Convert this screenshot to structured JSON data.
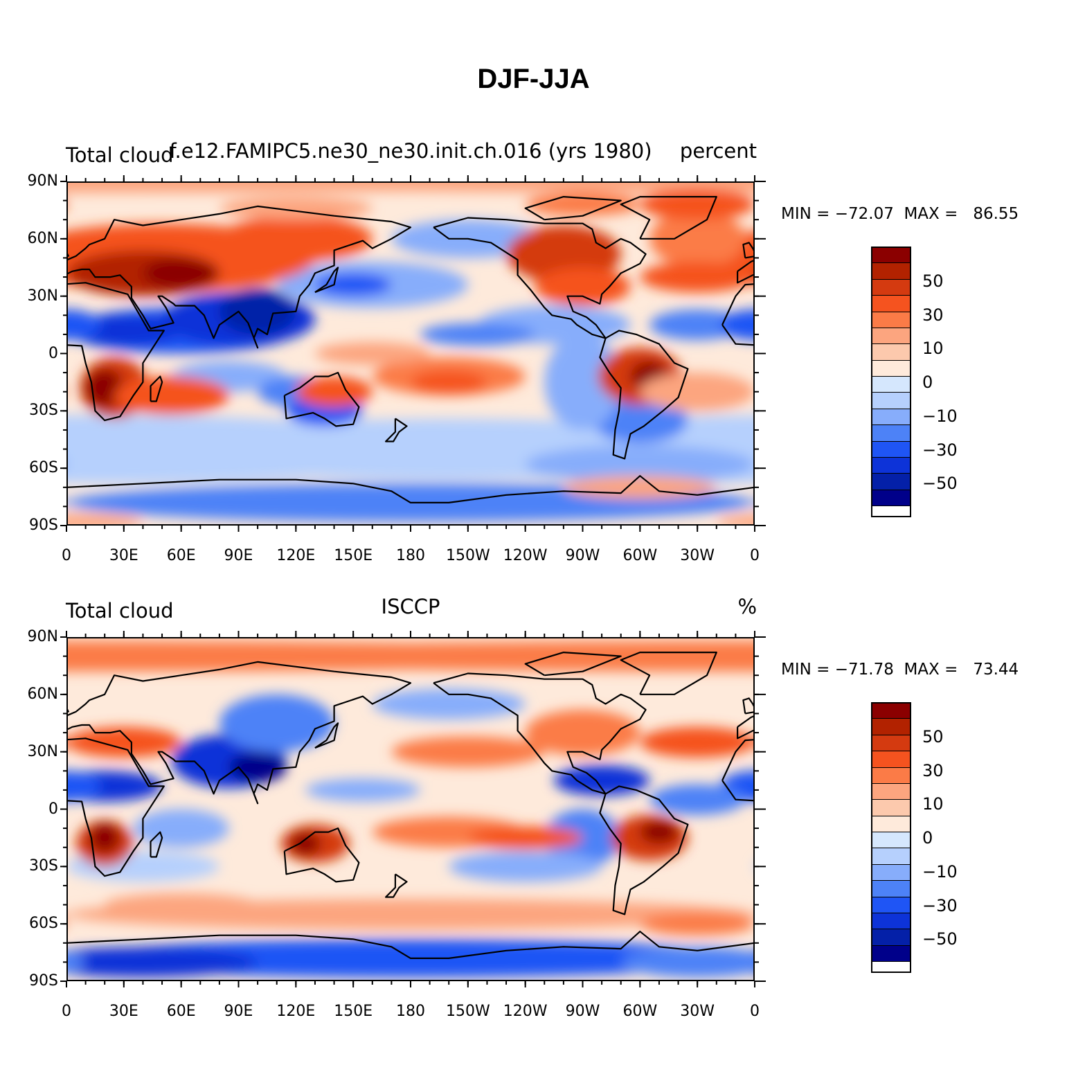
{
  "title": "DJF-JJA",
  "panels": [
    {
      "left_label": "Total cloud",
      "center_label": "f.e12.FAMIPC5.ne30_ne30.init.ch.016 (yrs 1980)",
      "right_label": "percent",
      "min_max_text": "MIN = −72.07  MAX =   86.55",
      "min": -72.07,
      "max": 86.55
    },
    {
      "left_label": "Total cloud",
      "center_label": "ISCCP",
      "right_label": "%",
      "min_max_text": "MIN = −71.78  MAX =   73.44",
      "min": -71.78,
      "max": 73.44
    }
  ],
  "axes": {
    "lat_labels": [
      "90N",
      "60N",
      "30N",
      "0",
      "30S",
      "60S",
      "90S"
    ],
    "lat_values": [
      90,
      60,
      30,
      0,
      -30,
      -60,
      -90
    ],
    "lon_labels": [
      "0",
      "30E",
      "60E",
      "90E",
      "120E",
      "150E",
      "180",
      "150W",
      "120W",
      "90W",
      "60W",
      "30W",
      "0"
    ],
    "lon_values": [
      0,
      30,
      60,
      90,
      120,
      150,
      180,
      210,
      240,
      270,
      300,
      330,
      360
    ]
  },
  "colorbar": {
    "colors": [
      "#8b0000",
      "#b22200",
      "#d43a10",
      "#f5531f",
      "#fb7b47",
      "#fca57f",
      "#fcc9ad",
      "#feeadb",
      "#d5e7fd",
      "#b6d0fd",
      "#87adfb",
      "#4d82f7",
      "#1f55f5",
      "#0d33d8",
      "#0420a8",
      "#00008a"
    ],
    "labels": [
      "50",
      "30",
      "10",
      "0",
      "−10",
      "−30",
      "−50"
    ],
    "label_values": [
      50,
      30,
      10,
      0,
      -10,
      -30,
      -50
    ]
  },
  "colors": {
    "land_outline": "#000000",
    "background": "#ffffff"
  }
}
